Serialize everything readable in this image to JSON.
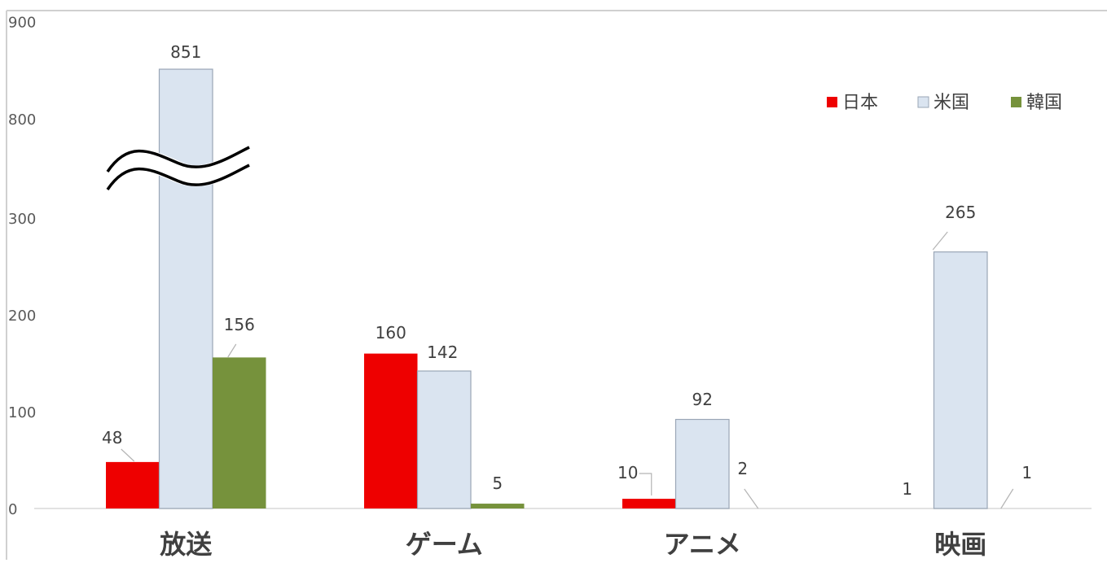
{
  "chart_data": {
    "type": "bar",
    "categories": [
      "放送",
      "ゲーム",
      "アニメ",
      "映画"
    ],
    "series": [
      {
        "name": "日本",
        "values": [
          48,
          160,
          10,
          1
        ],
        "color": "#ee0000"
      },
      {
        "name": "米国",
        "values": [
          851,
          142,
          92,
          265
        ],
        "color": "#dae4f0"
      },
      {
        "name": "韓国",
        "values": [
          156,
          5,
          2,
          1
        ],
        "color": "#76923c"
      }
    ],
    "y_ticks": [
      "0",
      "100",
      "200",
      "300",
      "800",
      "900"
    ],
    "y_axis_break": {
      "lower_range": [
        0,
        300
      ],
      "upper_range": [
        800,
        900
      ]
    },
    "legend_position": "top-right",
    "grid": false
  }
}
